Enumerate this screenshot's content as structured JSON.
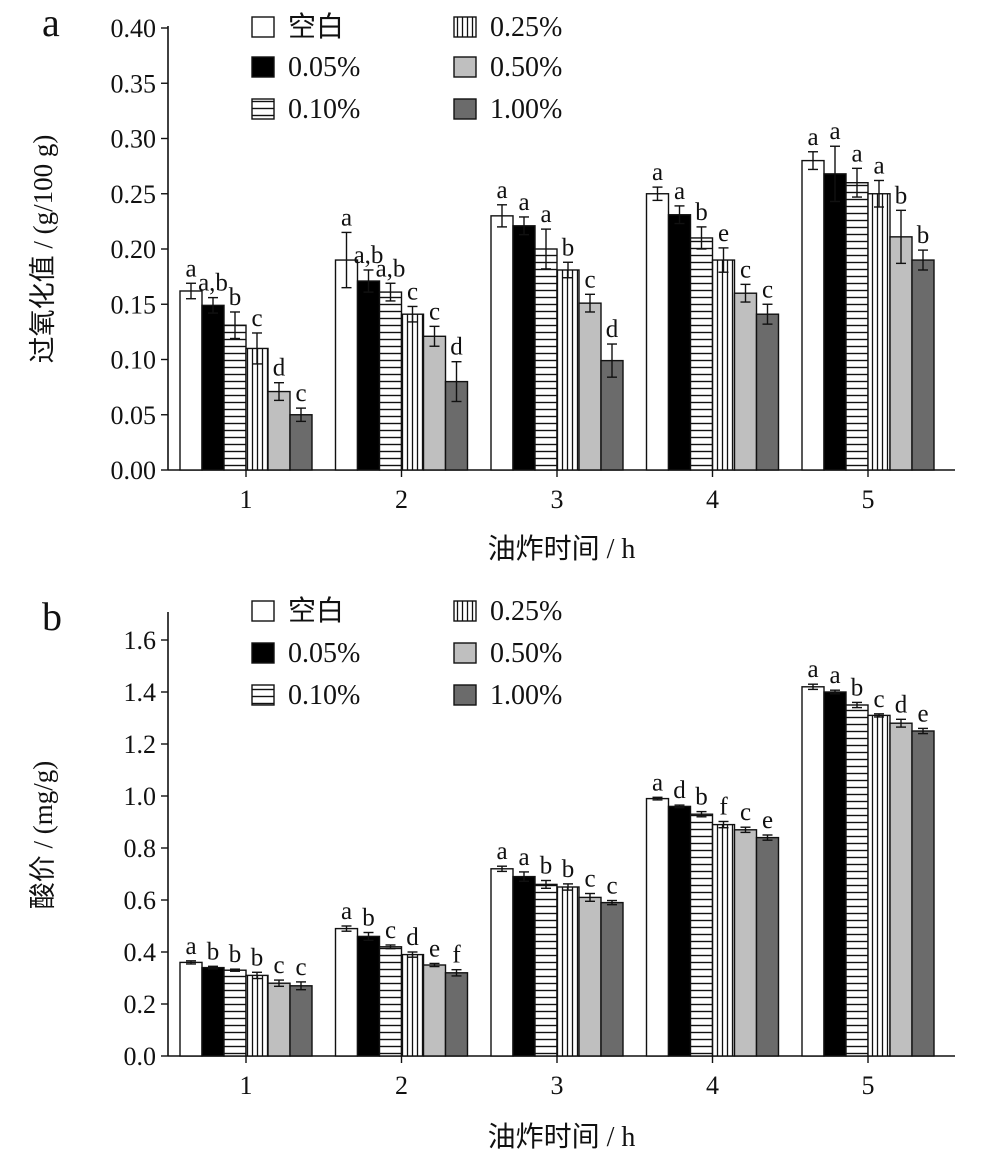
{
  "legend": [
    {
      "label": "空白",
      "fill": "#ffffff",
      "pattern": "none"
    },
    {
      "label": "0.05%",
      "fill": "#000000",
      "pattern": "none"
    },
    {
      "label": "0.10%",
      "fill": "#ffffff",
      "pattern": "horizontal"
    },
    {
      "label": "0.25%",
      "fill": "#ffffff",
      "pattern": "vertical"
    },
    {
      "label": "0.50%",
      "fill": "#bfbfbf",
      "pattern": "none"
    },
    {
      "label": "1.00%",
      "fill": "#6b6b6b",
      "pattern": "none"
    }
  ],
  "chart_data": [
    {
      "panel": "a",
      "type": "bar",
      "xlabel": "油炸时间 / h",
      "ylabel": "过氧化值 / (g/100 g)",
      "categories": [
        "1",
        "2",
        "3",
        "4",
        "5"
      ],
      "ylim": [
        0,
        0.4
      ],
      "yticks": [
        0.0,
        0.05,
        0.1,
        0.15,
        0.2,
        0.25,
        0.3,
        0.35,
        0.4
      ],
      "ytick_labels": [
        "0.00",
        "0.05",
        "0.10",
        "0.15",
        "0.20",
        "0.25",
        "0.30",
        "0.35",
        "0.40"
      ],
      "series": [
        {
          "name": "空白",
          "values": [
            0.162,
            0.19,
            0.23,
            0.25,
            0.28
          ],
          "errors": [
            0.007,
            0.025,
            0.01,
            0.006,
            0.008
          ],
          "labels": [
            "a",
            "a",
            "a",
            "a",
            "a"
          ]
        },
        {
          "name": "0.05%",
          "values": [
            0.149,
            0.171,
            0.221,
            0.231,
            0.268
          ],
          "errors": [
            0.007,
            0.01,
            0.008,
            0.008,
            0.025
          ],
          "labels": [
            "a,b",
            "a,b",
            "a",
            "a",
            "a"
          ]
        },
        {
          "name": "0.10%",
          "values": [
            0.131,
            0.161,
            0.2,
            0.21,
            0.26
          ],
          "errors": [
            0.012,
            0.008,
            0.018,
            0.01,
            0.013
          ],
          "labels": [
            "b",
            "a,b",
            "a",
            "b",
            "a"
          ]
        },
        {
          "name": "0.25%",
          "values": [
            0.11,
            0.141,
            0.181,
            0.19,
            0.25
          ],
          "errors": [
            0.014,
            0.007,
            0.007,
            0.011,
            0.012
          ],
          "labels": [
            "c",
            "c",
            "b",
            "e",
            "a"
          ]
        },
        {
          "name": "0.50%",
          "values": [
            0.071,
            0.121,
            0.151,
            0.16,
            0.211
          ],
          "errors": [
            0.008,
            0.009,
            0.008,
            0.008,
            0.024
          ],
          "labels": [
            "d",
            "c",
            "c",
            "c",
            "b"
          ]
        },
        {
          "name": "1.00%",
          "values": [
            0.05,
            0.08,
            0.099,
            0.141,
            0.19
          ],
          "errors": [
            0.006,
            0.018,
            0.015,
            0.009,
            0.009
          ],
          "labels": [
            "c",
            "d",
            "d",
            "c",
            "b"
          ]
        }
      ]
    },
    {
      "panel": "b",
      "type": "bar",
      "xlabel": "油炸时间 / h",
      "ylabel": "酸价 / (mg/g)",
      "categories": [
        "1",
        "2",
        "3",
        "4",
        "5"
      ],
      "ylim": [
        0,
        1.7
      ],
      "yticks": [
        0.0,
        0.2,
        0.4,
        0.6,
        0.8,
        1.0,
        1.2,
        1.4,
        1.6
      ],
      "ytick_labels": [
        "0.0",
        "0.2",
        "0.4",
        "0.6",
        "0.8",
        "1.0",
        "1.2",
        "1.4",
        "1.6"
      ],
      "series": [
        {
          "name": "空白",
          "values": [
            0.36,
            0.49,
            0.72,
            0.99,
            1.42
          ],
          "errors": [
            0.006,
            0.01,
            0.01,
            0.005,
            0.01
          ],
          "labels": [
            "a",
            "a",
            "a",
            "a",
            "a"
          ]
        },
        {
          "name": "0.05%",
          "values": [
            0.34,
            0.46,
            0.69,
            0.96,
            1.4
          ],
          "errors": [
            0.005,
            0.015,
            0.018,
            0.005,
            0.007
          ],
          "labels": [
            "b",
            "b",
            "a",
            "d",
            "a"
          ]
        },
        {
          "name": "0.10%",
          "values": [
            0.33,
            0.42,
            0.66,
            0.93,
            1.35
          ],
          "errors": [
            0.004,
            0.007,
            0.015,
            0.01,
            0.01
          ],
          "labels": [
            "b",
            "c",
            "b",
            "b",
            "b"
          ]
        },
        {
          "name": "0.25%",
          "values": [
            0.31,
            0.39,
            0.65,
            0.89,
            1.31
          ],
          "errors": [
            0.012,
            0.01,
            0.012,
            0.012,
            0.006
          ],
          "labels": [
            "b",
            "d",
            "b",
            "f",
            "c"
          ]
        },
        {
          "name": "0.50%",
          "values": [
            0.28,
            0.35,
            0.61,
            0.87,
            1.28
          ],
          "errors": [
            0.012,
            0.006,
            0.015,
            0.01,
            0.015
          ],
          "labels": [
            "c",
            "e",
            "c",
            "c",
            "d"
          ]
        },
        {
          "name": "1.00%",
          "values": [
            0.27,
            0.32,
            0.59,
            0.84,
            1.25
          ],
          "errors": [
            0.015,
            0.012,
            0.008,
            0.01,
            0.01
          ],
          "labels": [
            "c",
            "f",
            "c",
            "e",
            "e"
          ]
        }
      ]
    }
  ]
}
